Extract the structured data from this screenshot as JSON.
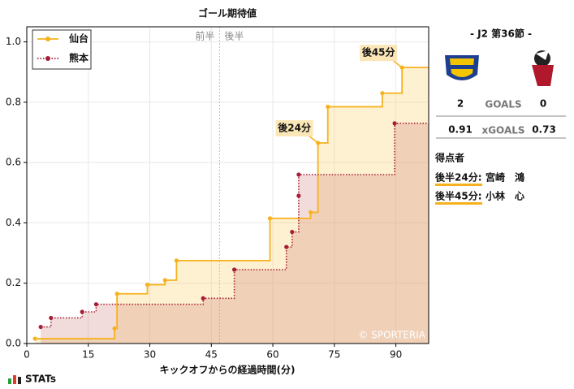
{
  "chart_data": {
    "type": "step",
    "title": "ゴール期待値",
    "x_label": "キックオフからの経過時間(分)",
    "xlim": [
      0,
      98
    ],
    "xticks": [
      0,
      15,
      30,
      45,
      60,
      75,
      90
    ],
    "ylim": [
      0,
      1.05
    ],
    "yticks": [
      {
        "value": 0,
        "label": "0.0"
      },
      {
        "value": 0.2,
        "label": "0.2"
      },
      {
        "value": 0.4,
        "label": "0.4"
      },
      {
        "value": 0.6,
        "label": "0.6"
      },
      {
        "value": 0.8,
        "label": "0.8"
      },
      {
        "value": 1.0,
        "label": "1.0"
      }
    ],
    "grid": true,
    "legend": "upper left",
    "series": [
      {
        "name": "仙台",
        "color": "#f5b21e",
        "area_color": "rgba(252,205,90,0.28)",
        "line_style": "solid",
        "x": [
          2,
          21.4,
          22,
          29.4,
          33.7,
          36.5,
          59.3,
          69.2,
          71,
          73.4,
          86.7,
          91.5
        ],
        "values": [
          0.016,
          0.05,
          0.165,
          0.195,
          0.21,
          0.275,
          0.415,
          0.435,
          0.665,
          0.785,
          0.83,
          0.915
        ]
      },
      {
        "name": "熊本",
        "color": "#a51f35",
        "area_color": "rgba(205,110,110,0.25)",
        "line_style": "dotted",
        "x": [
          3.4,
          5.9,
          13.5,
          16.9,
          43,
          50.6,
          63.3,
          64.7,
          66.3,
          66.3,
          89.7
        ],
        "values": [
          0.055,
          0.085,
          0.105,
          0.13,
          0.15,
          0.245,
          0.32,
          0.37,
          0.49,
          0.56,
          0.73
        ]
      }
    ],
    "halftime_x": 47,
    "half_labels": [
      "前半",
      "後半"
    ],
    "annotations": [
      {
        "text": "後24分",
        "x": 71,
        "y": 0.665
      },
      {
        "text": "後45分",
        "x": 91.5,
        "y": 0.915
      }
    ],
    "watermark": "© SPORTERIA"
  },
  "panel": {
    "match": "- J2 第36節 -",
    "goals_label": "GOALS",
    "home_goals": "2",
    "away_goals": "0",
    "xg_label": "xGOALS",
    "home_xg": "0.91",
    "away_xg": "0.73",
    "scorers_title": "得点者",
    "scorers": [
      {
        "time": "後半24分:",
        "name": "宮崎　鴻"
      },
      {
        "time": "後半45分:",
        "name": "小林　心"
      }
    ]
  },
  "brand": "STATs"
}
